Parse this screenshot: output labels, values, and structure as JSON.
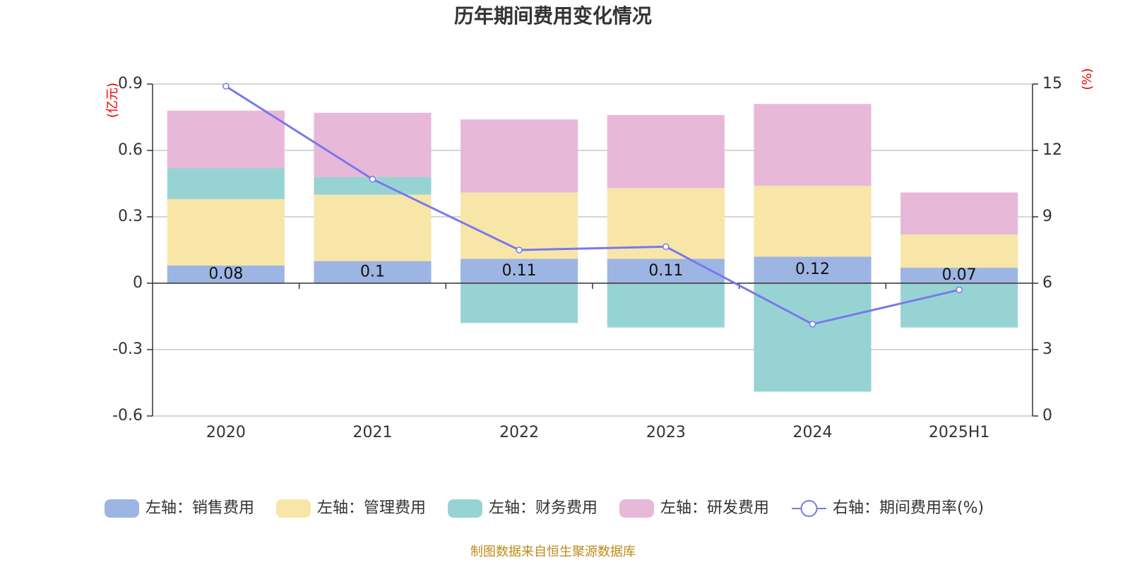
{
  "chart_data": {
    "type": "bar",
    "title": "历年期间费用变化情况",
    "categories": [
      "2020",
      "2021",
      "2022",
      "2023",
      "2024",
      "2025H1"
    ],
    "left_axis": {
      "unit": "(亿元)",
      "ylim": [
        -0.6,
        0.9
      ],
      "ticks": [
        -0.6,
        -0.3,
        0,
        0.3,
        0.6,
        0.9
      ],
      "tick_labels": [
        "-0.6",
        "-0.3",
        "0",
        "0.3",
        "0.6",
        "0.9"
      ]
    },
    "right_axis": {
      "unit": "(%)",
      "ylim": [
        0,
        15
      ],
      "ticks": [
        0,
        3,
        6,
        9,
        12,
        15
      ],
      "tick_labels": [
        "0",
        "3",
        "6",
        "9",
        "12",
        "15"
      ]
    },
    "series": [
      {
        "name": "左轴：销售费用",
        "axis": "left",
        "type": "bar",
        "color": "#9db5e3",
        "values": [
          0.08,
          0.1,
          0.11,
          0.11,
          0.12,
          0.07
        ],
        "data_labels": [
          "0.08",
          "0.1",
          "0.11",
          "0.11",
          "0.12",
          "0.07"
        ]
      },
      {
        "name": "左轴：管理费用",
        "axis": "left",
        "type": "bar",
        "color": "#f8e6a8",
        "values": [
          0.3,
          0.3,
          0.3,
          0.32,
          0.32,
          0.15
        ]
      },
      {
        "name": "左轴：财务费用",
        "axis": "left",
        "type": "bar",
        "color": "#98d3d4",
        "values": [
          0.14,
          0.08,
          -0.18,
          -0.2,
          -0.49,
          -0.2
        ]
      },
      {
        "name": "左轴：研发费用",
        "axis": "left",
        "type": "bar",
        "color": "#e8b8d9",
        "values": [
          0.26,
          0.29,
          0.33,
          0.33,
          0.37,
          0.19
        ]
      },
      {
        "name": "右轴：期间费用率(%)",
        "axis": "right",
        "type": "line",
        "color": "#7878ee",
        "values": [
          14.9,
          10.7,
          7.5,
          7.65,
          4.15,
          5.7
        ]
      }
    ],
    "grid": true,
    "legend_position": "bottom",
    "source": "制图数据来自恒生聚源数据库"
  }
}
